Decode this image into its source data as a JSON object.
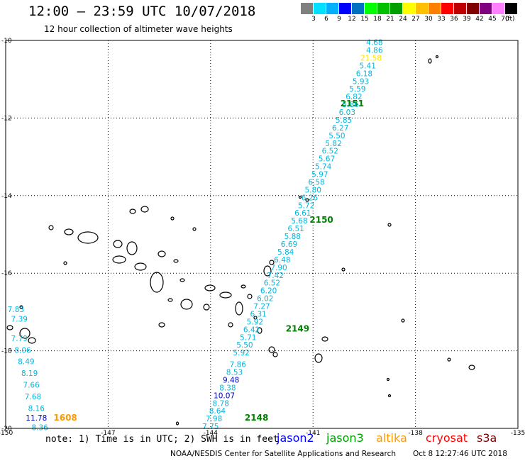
{
  "header": {
    "title": "12:00 — 23:59 UTC 10/07/2018",
    "subtitle": "12 hour collection of altimeter wave heights"
  },
  "colorbar": {
    "colors": [
      "#808080",
      "#00e0ff",
      "#00b0ff",
      "#0000ff",
      "#0070c0",
      "#00ff00",
      "#00c000",
      "#00a000",
      "#ffff00",
      "#ffc000",
      "#ff8000",
      "#ff0000",
      "#c00000",
      "#800000",
      "#800080",
      "#ff80ff",
      "#000000"
    ],
    "labels": [
      "3",
      "6",
      "9",
      "12",
      "15",
      "18",
      "21",
      "24",
      "27",
      "30",
      "33",
      "36",
      "39",
      "42",
      "45",
      "70"
    ],
    "unit": "(ft)"
  },
  "map": {
    "lon_range": [
      -150,
      -135
    ],
    "lat_range": [
      -20,
      -10
    ],
    "lon_ticks": [
      "-150",
      "-147",
      "-144",
      "-141",
      "-138",
      "-135"
    ],
    "lat_ticks": [
      "-10",
      "-12",
      "-14",
      "-16",
      "-18",
      "-20"
    ],
    "grid": "dotted",
    "passes": [
      {
        "label": "2151",
        "lon": -140.2,
        "lat": -11.7
      },
      {
        "label": "2150",
        "lon": -141.1,
        "lat": -14.7
      },
      {
        "label": "2149",
        "lon": -141.8,
        "lat": -17.5
      },
      {
        "label": "2148",
        "lon": -143.0,
        "lat": -19.8
      },
      {
        "label": "1608",
        "lon": -148.6,
        "lat": -19.8
      }
    ],
    "track_main": [
      {
        "v": "4.68",
        "lon": -139.2,
        "lat": -10.12,
        "c": "#00b8e0"
      },
      {
        "v": "4.86",
        "lon": -139.2,
        "lat": -10.32,
        "c": "#00b8e0"
      },
      {
        "v": "21.58",
        "lon": -139.3,
        "lat": -10.52,
        "c": "#ffe600"
      },
      {
        "v": "5.41",
        "lon": -139.4,
        "lat": -10.72,
        "c": "#00b8e0"
      },
      {
        "v": "6.18",
        "lon": -139.5,
        "lat": -10.92,
        "c": "#00b8e0"
      },
      {
        "v": "5.93",
        "lon": -139.6,
        "lat": -11.12,
        "c": "#00b8e0"
      },
      {
        "v": "5.59",
        "lon": -139.7,
        "lat": -11.32,
        "c": "#00b8e0"
      },
      {
        "v": "6.82",
        "lon": -139.8,
        "lat": -11.52,
        "c": "#00b8e0"
      },
      {
        "v": "5.86",
        "lon": -139.9,
        "lat": -11.72,
        "c": "#00b8e0"
      },
      {
        "v": "6.03",
        "lon": -140.0,
        "lat": -11.92,
        "c": "#00b8e0"
      },
      {
        "v": "5.85",
        "lon": -140.1,
        "lat": -12.12,
        "c": "#00b8e0"
      },
      {
        "v": "6.27",
        "lon": -140.2,
        "lat": -12.32,
        "c": "#00b8e0"
      },
      {
        "v": "5.50",
        "lon": -140.3,
        "lat": -12.52,
        "c": "#00b8e0"
      },
      {
        "v": "5.82",
        "lon": -140.4,
        "lat": -12.72,
        "c": "#00b8e0"
      },
      {
        "v": "6.52",
        "lon": -140.5,
        "lat": -12.92,
        "c": "#00b8e0"
      },
      {
        "v": "5.67",
        "lon": -140.6,
        "lat": -13.12,
        "c": "#00b8e0"
      },
      {
        "v": "5.74",
        "lon": -140.7,
        "lat": -13.32,
        "c": "#00b8e0"
      },
      {
        "v": "5.97",
        "lon": -140.8,
        "lat": -13.52,
        "c": "#00b8e0"
      },
      {
        "v": "6.58",
        "lon": -140.9,
        "lat": -13.72,
        "c": "#00b8e0"
      },
      {
        "v": "5.80",
        "lon": -141.0,
        "lat": -13.92,
        "c": "#00b8e0"
      },
      {
        "v": "6.26",
        "lon": -141.1,
        "lat": -14.12,
        "c": "#00b8e0"
      },
      {
        "v": "5.72",
        "lon": -141.2,
        "lat": -14.32,
        "c": "#00b8e0"
      },
      {
        "v": "6.61",
        "lon": -141.3,
        "lat": -14.52,
        "c": "#00b8e0"
      },
      {
        "v": "5.68",
        "lon": -141.4,
        "lat": -14.72,
        "c": "#00b8e0"
      },
      {
        "v": "6.51",
        "lon": -141.5,
        "lat": -14.92,
        "c": "#00b8e0"
      },
      {
        "v": "5.88",
        "lon": -141.6,
        "lat": -15.12,
        "c": "#00b8e0"
      },
      {
        "v": "6.69",
        "lon": -141.7,
        "lat": -15.32,
        "c": "#00b8e0"
      },
      {
        "v": "5.84",
        "lon": -141.8,
        "lat": -15.52,
        "c": "#00b8e0"
      },
      {
        "v": "6.48",
        "lon": -141.9,
        "lat": -15.72,
        "c": "#00b8e0"
      },
      {
        "v": "7.90",
        "lon": -142.0,
        "lat": -15.92,
        "c": "#00b8e0"
      },
      {
        "v": "7.42",
        "lon": -142.1,
        "lat": -16.12,
        "c": "#00b8e0"
      },
      {
        "v": "6.52",
        "lon": -142.2,
        "lat": -16.32,
        "c": "#00b8e0"
      },
      {
        "v": "6.20",
        "lon": -142.3,
        "lat": -16.52,
        "c": "#00b8e0"
      },
      {
        "v": "6.02",
        "lon": -142.4,
        "lat": -16.72,
        "c": "#00b8e0"
      },
      {
        "v": "7.27",
        "lon": -142.5,
        "lat": -16.92,
        "c": "#00b8e0"
      },
      {
        "v": "6.31",
        "lon": -142.6,
        "lat": -17.12,
        "c": "#00b8e0"
      },
      {
        "v": "5.92",
        "lon": -142.7,
        "lat": -17.32,
        "c": "#00b8e0"
      },
      {
        "v": "6.42",
        "lon": -142.8,
        "lat": -17.52,
        "c": "#00b8e0"
      },
      {
        "v": "5.71",
        "lon": -142.9,
        "lat": -17.72,
        "c": "#00b8e0"
      },
      {
        "v": "5.50",
        "lon": -143.0,
        "lat": -17.92,
        "c": "#00b8e0"
      },
      {
        "v": "5.92",
        "lon": -143.1,
        "lat": -18.12,
        "c": "#00b8e0"
      },
      {
        "v": "7.86",
        "lon": -143.2,
        "lat": -18.42,
        "c": "#00b8e0"
      },
      {
        "v": "8.53",
        "lon": -143.3,
        "lat": -18.62,
        "c": "#00b8e0"
      },
      {
        "v": "9.48",
        "lon": -143.4,
        "lat": -18.82,
        "c": "#0000c0"
      },
      {
        "v": "8.38",
        "lon": -143.5,
        "lat": -19.02,
        "c": "#00b8e0"
      },
      {
        "v": "10.07",
        "lon": -143.6,
        "lat": -19.22,
        "c": "#0000c0"
      },
      {
        "v": "8.78",
        "lon": -143.7,
        "lat": -19.42,
        "c": "#00b8e0"
      },
      {
        "v": "8.64",
        "lon": -143.8,
        "lat": -19.62,
        "c": "#00b8e0"
      },
      {
        "v": "7.98",
        "lon": -143.9,
        "lat": -19.82,
        "c": "#00b8e0"
      },
      {
        "v": "7.75",
        "lon": -144.0,
        "lat": -20.02,
        "c": "#00b8e0"
      }
    ],
    "track_west": [
      {
        "v": "7.83",
        "lon": -149.7,
        "lat": -17.0,
        "c": "#00b8e0"
      },
      {
        "v": "7.39",
        "lon": -149.6,
        "lat": -17.25,
        "c": "#00b8e0"
      },
      {
        "v": "7.79",
        "lon": -149.6,
        "lat": -17.75,
        "c": "#00b8e0"
      },
      {
        "v": "8.06",
        "lon": -149.5,
        "lat": -18.05,
        "c": "#00b8e0"
      },
      {
        "v": "8.49",
        "lon": -149.4,
        "lat": -18.35,
        "c": "#00b8e0"
      },
      {
        "v": "8.19",
        "lon": -149.3,
        "lat": -18.65,
        "c": "#00b8e0"
      },
      {
        "v": "7.66",
        "lon": -149.25,
        "lat": -18.95,
        "c": "#00b8e0"
      },
      {
        "v": "7.68",
        "lon": -149.2,
        "lat": -19.25,
        "c": "#00b8e0"
      },
      {
        "v": "8.16",
        "lon": -149.1,
        "lat": -19.55,
        "c": "#00b8e0"
      },
      {
        "v": "11.78",
        "lon": -149.1,
        "lat": -19.8,
        "c": "#0000c0"
      },
      {
        "v": "8.36",
        "lon": -149.0,
        "lat": -20.05,
        "c": "#00b8e0"
      }
    ]
  },
  "legend": {
    "note": "note: 1) Time is in UTC; 2) SWH is in feet",
    "missions": [
      {
        "name": "jason2",
        "color": "#0000ff"
      },
      {
        "name": "jason3",
        "color": "#00a000"
      },
      {
        "name": "altika",
        "color": "#ff9900"
      },
      {
        "name": "cryosat",
        "color": "#ff0000"
      },
      {
        "name": "s3a",
        "color": "#800000"
      }
    ],
    "credit": "NOAA/NESDIS Center for Satellite Applications and Research",
    "timestamp": "Oct  8 12:27:46 UTC 2018"
  }
}
